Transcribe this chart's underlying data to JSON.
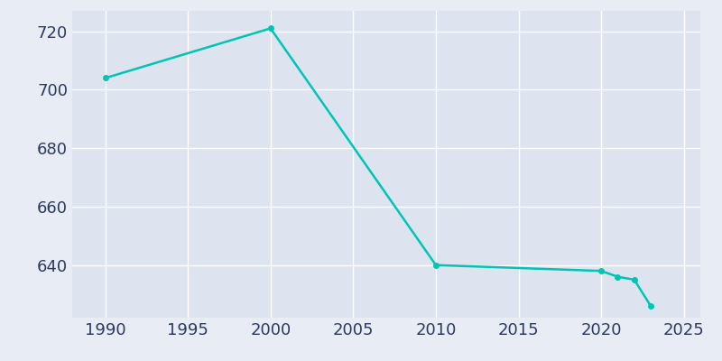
{
  "years": [
    1990,
    2000,
    2010,
    2020,
    2021,
    2022,
    2023
  ],
  "population": [
    704,
    721,
    640,
    638,
    636,
    635,
    626
  ],
  "line_color": "#00c5b2",
  "marker_color": "#00c5b2",
  "fig_bg_color": "#e8edf5",
  "plot_bg_color": "#dde4ef",
  "grid_color": "#ffffff",
  "tick_color": "#2d3a5e",
  "xlim": [
    1988,
    2026
  ],
  "ylim": [
    622,
    727
  ],
  "xticks": [
    1990,
    1995,
    2000,
    2005,
    2010,
    2015,
    2020,
    2025
  ],
  "yticks": [
    640,
    660,
    680,
    700,
    720
  ],
  "tick_fontsize": 13,
  "marker_size": 4,
  "line_width": 1.8
}
